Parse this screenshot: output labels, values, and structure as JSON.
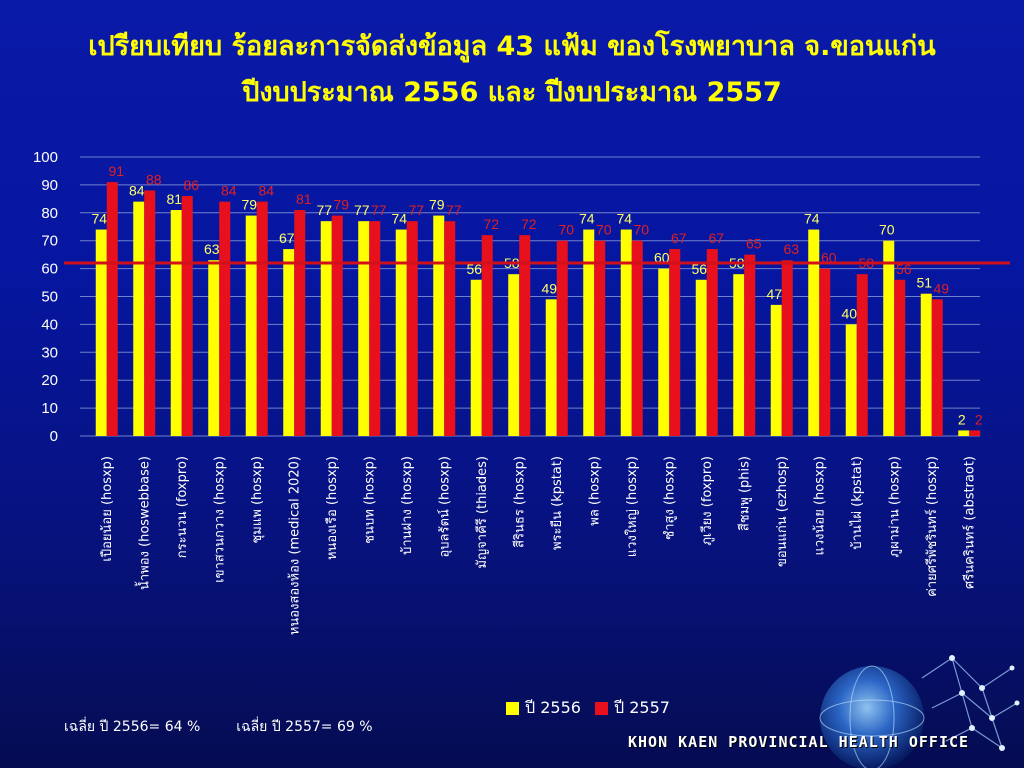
{
  "title": {
    "line1": "เปรียบเทียบ ร้อยละการจัดส่งข้อมูล 43 แฟ้ม ของโรงพยาบาล จ.ขอนแก่น",
    "line2": "ปีงบประมาณ 2556 และ ปีงบประมาณ 2557"
  },
  "legend": {
    "s1": "ปี 2556",
    "s2": "ปี 2557"
  },
  "averages": {
    "a1": "เฉลี่ย ปี 2556= 64 %",
    "a2": "เฉลี่ย ปี 2557= 69 %"
  },
  "footer": "KHON KAEN PROVINCIAL HEALTH OFFICE",
  "colors": {
    "series_2556": "#ffff00",
    "series_2557": "#e8101c",
    "average_line": "#d0101a",
    "label_2556": "#ffff66",
    "label_2557": "#e02020"
  },
  "chart_data": {
    "type": "bar",
    "title": "เปรียบเทียบ ร้อยละการจัดส่งข้อมูล 43 แฟ้ม ของโรงพยาบาล จ.ขอนแก่น ปีงบประมาณ 2556 และ ปีงบประมาณ 2557",
    "ylim": [
      0,
      100
    ],
    "yticks": [
      0,
      10,
      20,
      30,
      40,
      50,
      60,
      70,
      80,
      90,
      100
    ],
    "grid": true,
    "reference_line": 62,
    "categories": [
      "เปือยน้อย (hosxp)",
      "น้ำพอง (hoswebbase)",
      "กระนวน (foxpro)",
      "เขาสวนกวาง (hosxp)",
      "ชุมแพ (hosxp)",
      "หนองสองห้อง (medical 2020)",
      "หนองเรือ (hosxp)",
      "ชนบท (hosxp)",
      "บ้านฝาง (hosxp)",
      "อุบลรัตน์ (hosxp)",
      "มัญจาคีรี (thiades)",
      "สีรินธร (hosxp)",
      "พระยืน (kpstat)",
      "พล (hosxp)",
      "แวงใหญ่ (hosxp)",
      "ซำสูง (hosxp)",
      "ภูเวียง (foxpro)",
      "สีชมพู (phis)",
      "ขอนแก่น (ezhosp)",
      "แวงน้อย (hosxp)",
      "บ้านไผ่ (kpstat)",
      "ภูผาม่าน (hosxp)",
      "ค่ายศรีพัชรินทร์ (hosxp)",
      "ศรีนครินทร์ (abstraot)"
    ],
    "series": [
      {
        "name": "ปี 2556",
        "values": [
          74,
          84,
          81,
          63,
          79,
          67,
          77,
          77,
          74,
          79,
          56,
          58,
          49,
          74,
          74,
          60,
          56,
          58,
          47,
          74,
          40,
          70,
          51,
          2
        ]
      },
      {
        "name": "ปี 2557",
        "values": [
          91,
          88,
          86,
          84,
          84,
          81,
          79,
          77,
          77,
          77,
          72,
          72,
          70,
          70,
          70,
          67,
          67,
          65,
          63,
          60,
          58,
          56,
          49,
          2
        ]
      }
    ]
  }
}
